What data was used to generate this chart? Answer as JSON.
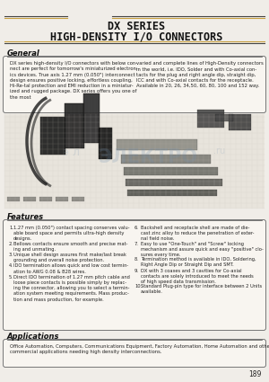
{
  "title_line1": "DX SERIES",
  "title_line2": "HIGH-DENSITY I/O CONNECTORS",
  "page_bg": "#f0ede8",
  "section_general_title": "General",
  "general_text_left": "DX series high-density I/O connectors with below con-\nnect are perfect for tomorrow's miniaturized electron-\nics devices. True axis 1.27 mm (0.050\") interconnect\ndesign ensures positive locking, effortless coupling,\nHi-Re-tal protection and EMI reduction in a miniatur-\nized and rugged package. DX series offers you one of\nthe most",
  "general_text_right": "varied and complete lines of High-Density connectors\nin the world, i.e. IDO, Solder and with Co-axial con-\ntacts for the plug and right angle dip, straight dip,\nICC and with Co-axial contacts for the receptacle.\nAvailable in 20, 26, 34,50, 60, 80, 100 and 152 way.",
  "section_features_title": "Features",
  "features_left": [
    [
      "1.",
      "1.27 mm (0.050\") contact spacing conserves valu-\nable board space and permits ultra-high density\ndesigns."
    ],
    [
      "2.",
      "Bellows contacts ensure smooth and precise mat-\ning and unmating."
    ],
    [
      "3.",
      "Unique shell design assures first make/last break\ngrounding and overall noise protection."
    ],
    [
      "4.",
      "IDO termination allows quick and low cost termin-\nation to AWG 0.08 & B28 wires."
    ],
    [
      "5.",
      "Direct IDO termination of 1.27 mm pitch cable and\nloose piece contacts is possible simply by replac-\ning the connector, allowing you to select a termin-\nation system meeting requirements. Mass produc-\ntion and mass production, for example."
    ]
  ],
  "features_right": [
    [
      "6.",
      "Backshell and receptacle shell are made of die-\ncast zinc alloy to reduce the penetration of exter-\nnal field noise."
    ],
    [
      "7.",
      "Easy to use \"One-Touch\" and \"Screw\" locking\nmechanism and assure quick and easy \"positive\" clo-\nsures every time."
    ],
    [
      "8.",
      "Termination method is available in IDO, Soldering,\nRight Angle Dip or Straight Dip and SMT."
    ],
    [
      "9.",
      "DX with 3 coaxes and 3 cavities for Co-axial\ncontacts are solely introduced to meet the needs\nof high speed data transmission."
    ],
    [
      "10.",
      "Standard Plug-pin type for interface between 2 Units\navailable."
    ]
  ],
  "section_applications_title": "Applications",
  "applications_text": "Office Automation, Computers, Communications Equipment, Factory Automation, Home Automation and other\ncommercial applications needing high density interconnections.",
  "page_number": "189",
  "title_color": "#111111",
  "section_title_color": "#111111",
  "text_color": "#222222",
  "border_color": "#777777",
  "dark_line_color": "#444444",
  "amber_line_color": "#c8a040"
}
